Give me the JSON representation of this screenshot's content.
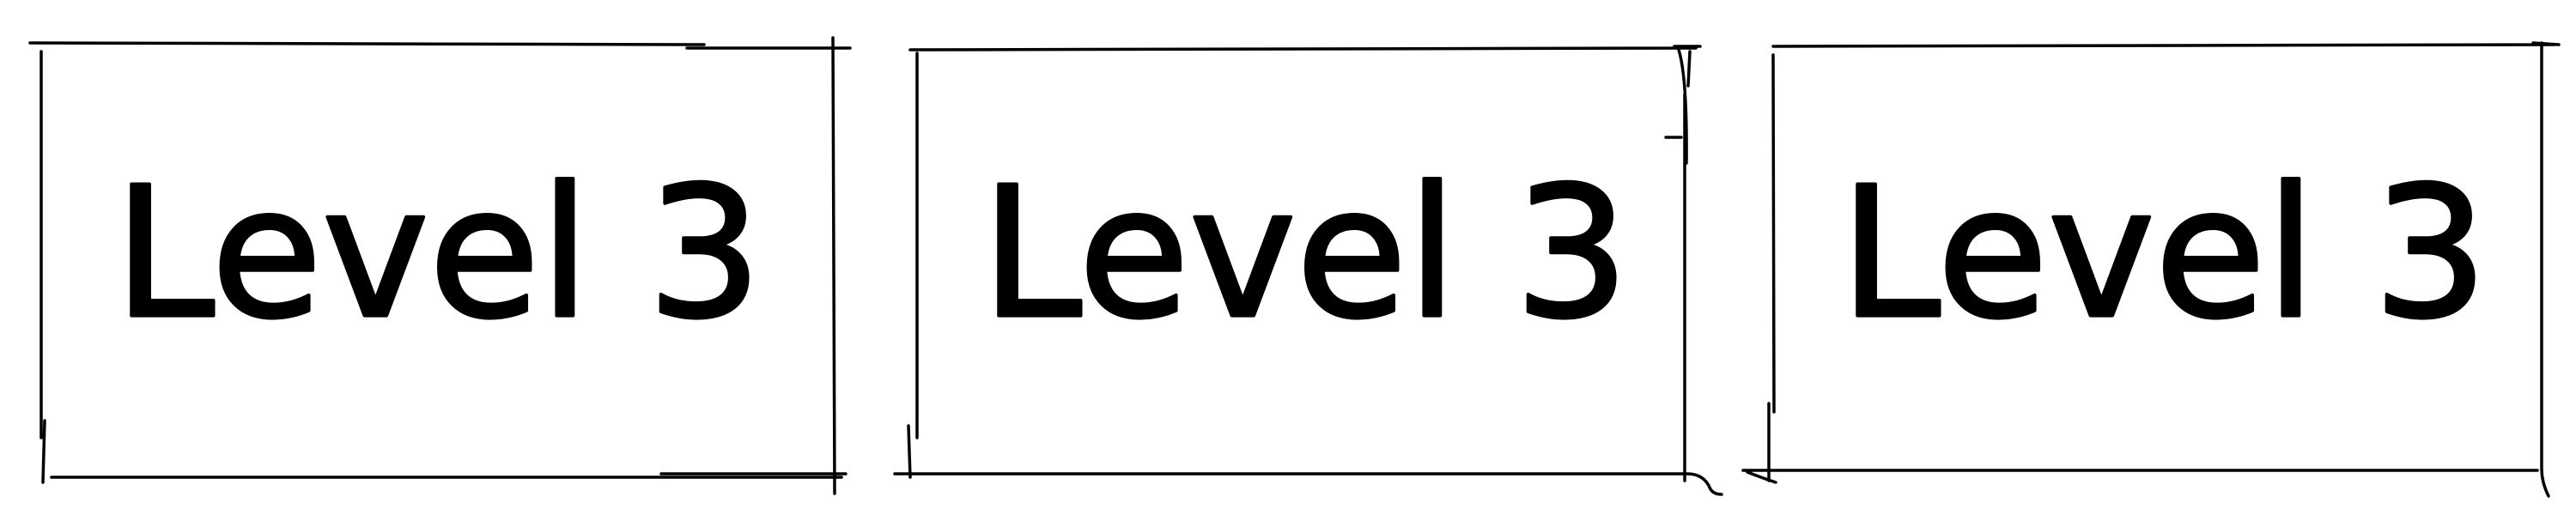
{
  "panels": [
    {
      "label": "Level 3"
    },
    {
      "label": "Level 3"
    },
    {
      "label": "Level 3"
    }
  ],
  "colors": {
    "ink": "#000000",
    "paper": "#ffffff"
  }
}
